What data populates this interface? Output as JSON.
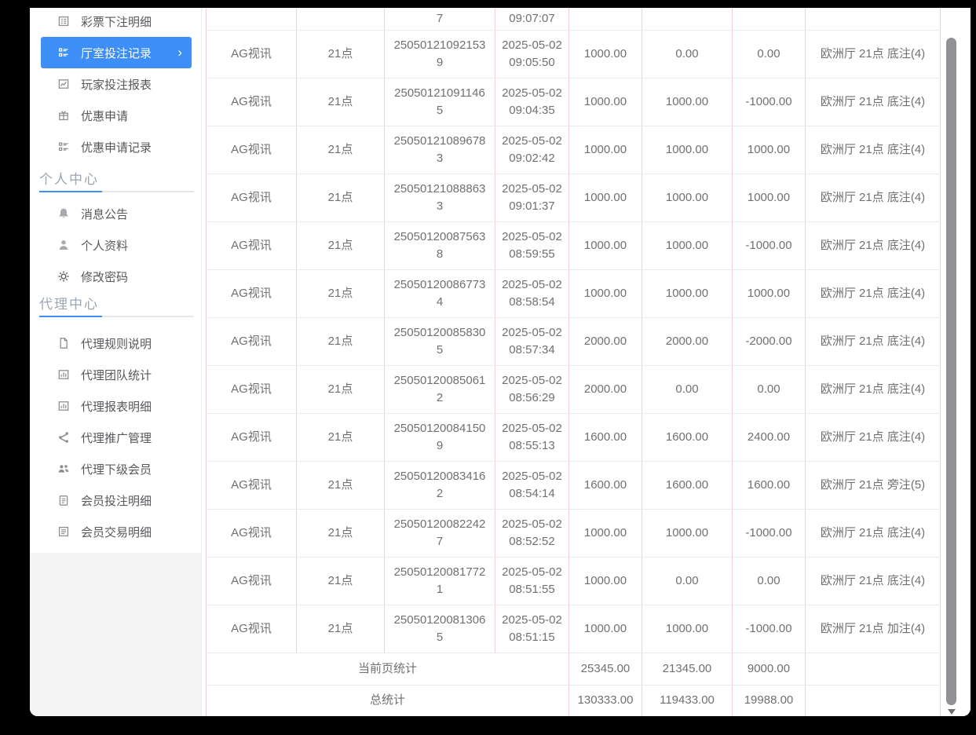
{
  "colors": {
    "accent_blue": "#3d8ef7",
    "sidebar_text": "#56585c",
    "section_title_gray": "#9aa6b2",
    "table_text": "#707070",
    "table_vertical_border": "#f5cfcf",
    "table_horizontal_border": "#eaeaea",
    "scrollbar_thumb": "#8f9194",
    "letterbox_background": "#000000",
    "sidebar_lower_background": "#f4f4f4"
  },
  "sidebar": {
    "top_items": [
      {
        "label": "彩票下注明细",
        "icon": "list-alt-icon",
        "active": false
      },
      {
        "label": "厅室投注记录",
        "icon": "layout-list-icon",
        "active": true,
        "chevron": "›"
      },
      {
        "label": "玩家投注报表",
        "icon": "chart-icon",
        "active": false
      },
      {
        "label": "优惠申请",
        "icon": "gift-icon",
        "active": false
      },
      {
        "label": "优惠申请记录",
        "icon": "layout-list-icon",
        "active": false
      }
    ],
    "sections": [
      {
        "title": "个人中心",
        "items": [
          {
            "label": "消息公告",
            "icon": "bell-icon"
          },
          {
            "label": "个人资料",
            "icon": "user-icon"
          },
          {
            "label": "修改密码",
            "icon": "gear-icon"
          }
        ]
      },
      {
        "title": "代理中心",
        "items": [
          {
            "label": "代理规则说明",
            "icon": "file-icon"
          },
          {
            "label": "代理团队统计",
            "icon": "board-chart-icon"
          },
          {
            "label": "代理报表明细",
            "icon": "board-chart-icon"
          },
          {
            "label": "代理推广管理",
            "icon": "share-icon"
          },
          {
            "label": "代理下级会员",
            "icon": "users-icon"
          },
          {
            "label": "会员投注明细",
            "icon": "clipboard-icon"
          },
          {
            "label": "会员交易明细",
            "icon": "list-box-icon"
          }
        ]
      }
    ]
  },
  "table": {
    "partial_top_row": {
      "order_no_tail": "7",
      "time_tail": "09:07:07"
    },
    "rows": [
      [
        "AG视讯",
        "21点",
        "250501210921539",
        "2025-05-02 09:05:50",
        "1000.00",
        "0.00",
        "0.00",
        "欧洲厅 21点 底注(4)"
      ],
      [
        "AG视讯",
        "21点",
        "250501210911465",
        "2025-05-02 09:04:35",
        "1000.00",
        "1000.00",
        "-1000.00",
        "欧洲厅 21点 底注(4)"
      ],
      [
        "AG视讯",
        "21点",
        "250501210896783",
        "2025-05-02 09:02:42",
        "1000.00",
        "1000.00",
        "1000.00",
        "欧洲厅 21点 底注(4)"
      ],
      [
        "AG视讯",
        "21点",
        "250501210888633",
        "2025-05-02 09:01:37",
        "1000.00",
        "1000.00",
        "1000.00",
        "欧洲厅 21点 底注(4)"
      ],
      [
        "AG视讯",
        "21点",
        "250501200875638",
        "2025-05-02 08:59:55",
        "1000.00",
        "1000.00",
        "-1000.00",
        "欧洲厅 21点 底注(4)"
      ],
      [
        "AG视讯",
        "21点",
        "250501200867734",
        "2025-05-02 08:58:54",
        "1000.00",
        "1000.00",
        "1000.00",
        "欧洲厅 21点 底注(4)"
      ],
      [
        "AG视讯",
        "21点",
        "250501200858305",
        "2025-05-02 08:57:34",
        "2000.00",
        "2000.00",
        "-2000.00",
        "欧洲厅 21点 底注(4)"
      ],
      [
        "AG视讯",
        "21点",
        "250501200850612",
        "2025-05-02 08:56:29",
        "2000.00",
        "0.00",
        "0.00",
        "欧洲厅 21点 底注(4)"
      ],
      [
        "AG视讯",
        "21点",
        "250501200841509",
        "2025-05-02 08:55:13",
        "1600.00",
        "1600.00",
        "2400.00",
        "欧洲厅 21点 底注(4)"
      ],
      [
        "AG视讯",
        "21点",
        "250501200834162",
        "2025-05-02 08:54:14",
        "1600.00",
        "1600.00",
        "1600.00",
        "欧洲厅 21点 旁注(5)"
      ],
      [
        "AG视讯",
        "21点",
        "250501200822427",
        "2025-05-02 08:52:52",
        "1000.00",
        "1000.00",
        "-1000.00",
        "欧洲厅 21点 底注(4)"
      ],
      [
        "AG视讯",
        "21点",
        "250501200817721",
        "2025-05-02 08:51:55",
        "1000.00",
        "0.00",
        "0.00",
        "欧洲厅 21点 底注(4)"
      ],
      [
        "AG视讯",
        "21点",
        "250501200813065",
        "2025-05-02 08:51:15",
        "1000.00",
        "1000.00",
        "-1000.00",
        "欧洲厅 21点 加注(4)"
      ]
    ],
    "footer_rows": [
      {
        "label": "当前页统计",
        "values": [
          "25345.00",
          "21345.00",
          "9000.00"
        ]
      },
      {
        "label": "总统计",
        "values": [
          "130333.00",
          "119433.00",
          "19988.00"
        ]
      }
    ]
  }
}
